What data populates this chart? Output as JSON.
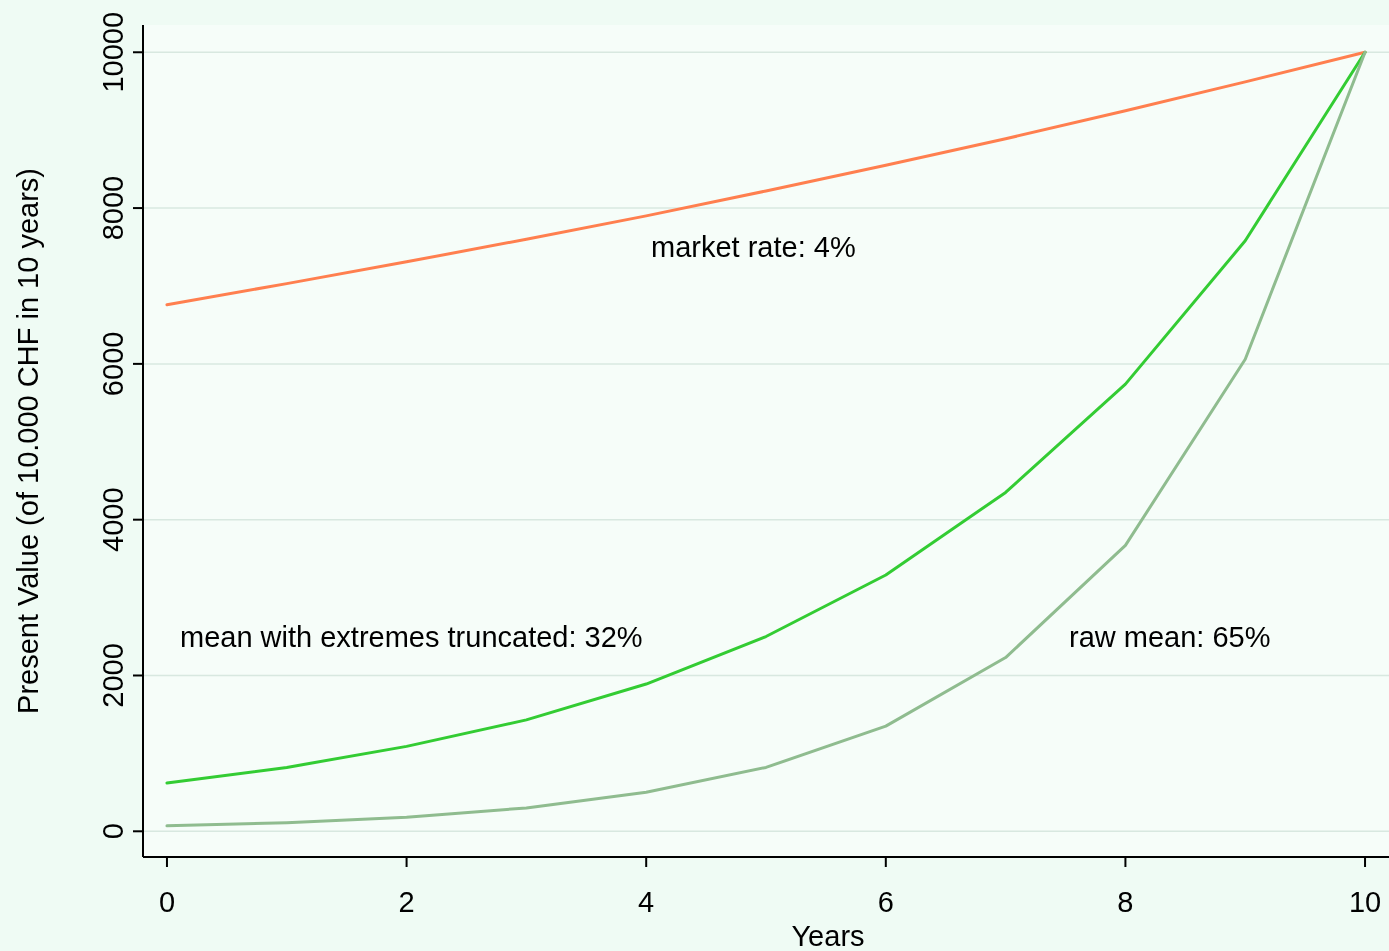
{
  "chart_data": {
    "type": "line",
    "xlabel": "Years",
    "ylabel": "Present Value (of 10.000 CHF in 10 years)",
    "x": [
      0,
      1,
      2,
      3,
      4,
      5,
      6,
      7,
      8,
      9,
      10
    ],
    "series": [
      {
        "name": "market rate: 4%",
        "color": "#ff7f4f",
        "values": [
          6760,
          7030,
          7310,
          7600,
          7900,
          8220,
          8550,
          8890,
          9250,
          9620,
          10000
        ]
      },
      {
        "name": "mean with extremes truncated: 32%",
        "color": "#33cc33",
        "values": [
          620,
          820,
          1090,
          1430,
          1890,
          2500,
          3290,
          4350,
          5740,
          7580,
          10000
        ]
      },
      {
        "name": "raw mean: 65%",
        "color": "#8fbc8f",
        "values": [
          70,
          110,
          180,
          300,
          500,
          820,
          1350,
          2230,
          3670,
          6060,
          10000
        ]
      }
    ],
    "xlim": [
      -0.2,
      10.2
    ],
    "ylim": [
      -330,
      10350
    ],
    "xticks": [
      0,
      2,
      4,
      6,
      8,
      10
    ],
    "yticks": [
      0,
      2000,
      4000,
      6000,
      8000,
      10000
    ],
    "grid": "y",
    "marker": "none",
    "line_style": "solid"
  }
}
